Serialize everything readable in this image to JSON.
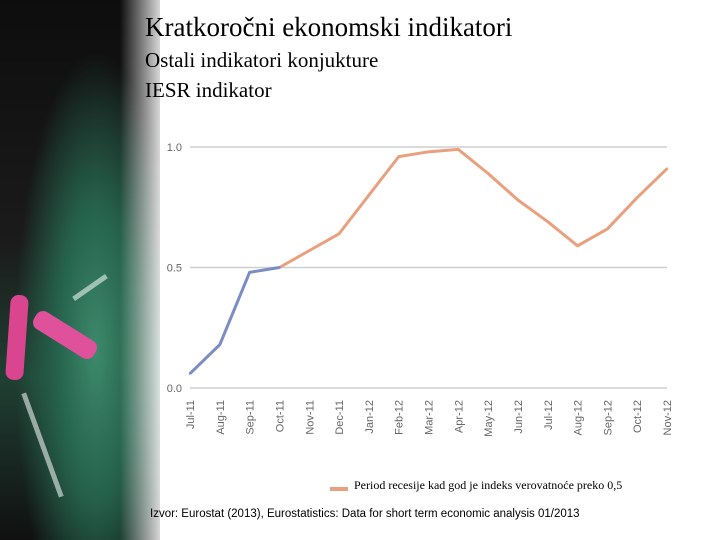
{
  "header": {
    "title": "Kratkoročni ekonomski indikatori",
    "subtitle1": "Ostali indikatori konjukture",
    "subtitle2": "IESR indikator"
  },
  "chart_data": {
    "type": "line",
    "categories": [
      "Jul-11",
      "Aug-11",
      "Sep-11",
      "Oct-11",
      "Nov-11",
      "Dec-11",
      "Jan-12",
      "Feb-12",
      "Mar-12",
      "Apr-12",
      "May-12",
      "Jun-12",
      "Jul-12",
      "Aug-12",
      "Sep-12",
      "Oct-12",
      "Nov-12"
    ],
    "values": [
      0.06,
      0.18,
      0.48,
      0.5,
      0.57,
      0.64,
      0.8,
      0.96,
      0.98,
      0.99,
      0.89,
      0.78,
      0.69,
      0.59,
      0.66,
      0.79,
      0.91
    ],
    "segments": [
      {
        "from": 0,
        "to": 3,
        "color": "#7b8dc4"
      },
      {
        "from": 3,
        "to": 16,
        "color": "#e8a07e"
      }
    ],
    "yticks": [
      "0.0",
      "0.5",
      "1.0"
    ],
    "ylim": [
      0,
      1
    ],
    "grid": true,
    "legend": "Period recesije kad god je indeks verovatnoće preko 0,5",
    "legend_color": "#e8a07e",
    "legend_placement": "bottom"
  },
  "source": "Izvor: Eurostat (2013), Eurostatistics: Data for short term economic analysis 01/2013"
}
